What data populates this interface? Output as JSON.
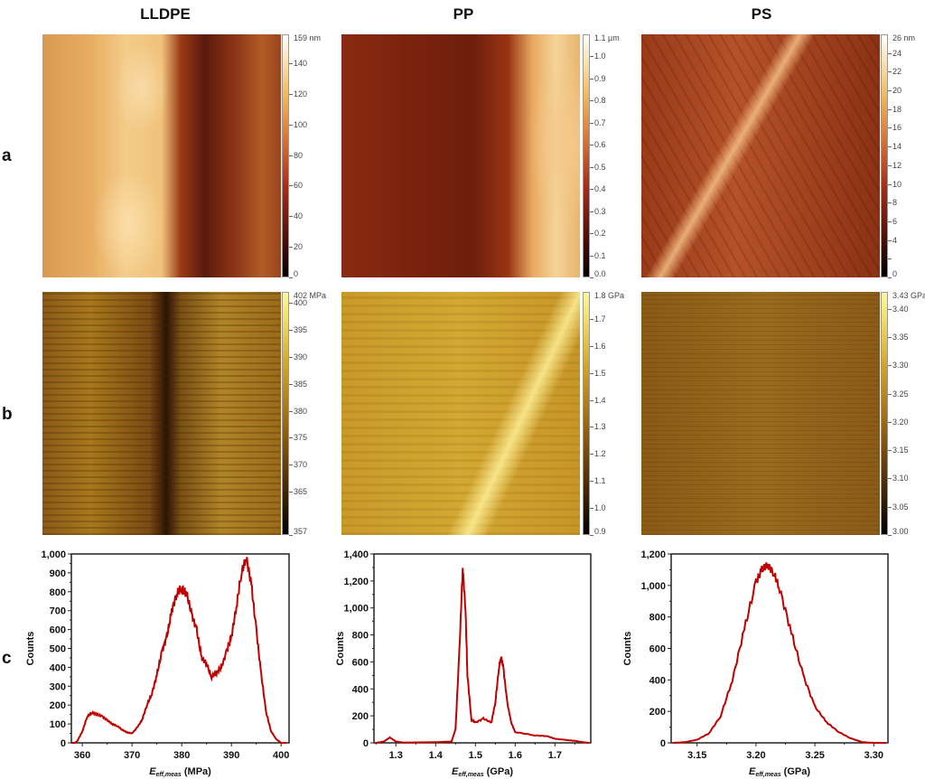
{
  "column_titles": [
    "LLDPE",
    "PP",
    "PS"
  ],
  "row_labels": [
    "a",
    "b",
    "c"
  ],
  "colorbars": [
    {
      "row": "a",
      "col": 0,
      "min": 0,
      "max": 159,
      "top_label": "159 nm",
      "ticks": [
        [
          0,
          "0"
        ],
        [
          20,
          "20"
        ],
        [
          40,
          "40"
        ],
        [
          60,
          "60"
        ],
        [
          80,
          "80"
        ],
        [
          100,
          "100"
        ],
        [
          120,
          "120"
        ],
        [
          140,
          "140"
        ]
      ]
    },
    {
      "row": "a",
      "col": 1,
      "min": 0,
      "max": 1.1,
      "top_label": "1.1 µm",
      "ticks": [
        [
          0,
          "0.0"
        ],
        [
          0.1,
          "0.1"
        ],
        [
          0.2,
          "0.2"
        ],
        [
          0.3,
          "0.3"
        ],
        [
          0.4,
          "0.4"
        ],
        [
          0.5,
          "0.5"
        ],
        [
          0.6,
          "0.6"
        ],
        [
          0.7,
          "0.7"
        ],
        [
          0.8,
          "0.8"
        ],
        [
          0.9,
          "0.9"
        ],
        [
          1.0,
          "1.0"
        ]
      ]
    },
    {
      "row": "a",
      "col": 2,
      "min": 0,
      "max": 26,
      "top_label": "26 nm",
      "ticks": [
        [
          0,
          "0"
        ],
        [
          2,
          ""
        ],
        [
          4,
          "4"
        ],
        [
          6,
          "6"
        ],
        [
          8,
          "8"
        ],
        [
          10,
          "10"
        ],
        [
          12,
          "12"
        ],
        [
          14,
          "14"
        ],
        [
          16,
          "16"
        ],
        [
          18,
          "18"
        ],
        [
          20,
          "20"
        ],
        [
          22,
          "22"
        ],
        [
          24,
          "24"
        ]
      ]
    },
    {
      "row": "b",
      "col": 0,
      "min": 357,
      "max": 402,
      "top_label": "402 MPa",
      "ticks": [
        [
          357,
          "357"
        ],
        [
          365,
          "365"
        ],
        [
          370,
          "370"
        ],
        [
          375,
          "375"
        ],
        [
          380,
          "380"
        ],
        [
          385,
          "385"
        ],
        [
          390,
          "390"
        ],
        [
          395,
          "395"
        ],
        [
          400,
          "400"
        ]
      ]
    },
    {
      "row": "b",
      "col": 1,
      "min": 0.9,
      "max": 1.8,
      "top_label": "1.8 GPa",
      "ticks": [
        [
          0.9,
          "0.9"
        ],
        [
          1.0,
          "1.0"
        ],
        [
          1.1,
          "1.1"
        ],
        [
          1.2,
          "1.2"
        ],
        [
          1.3,
          "1.3"
        ],
        [
          1.4,
          "1.4"
        ],
        [
          1.5,
          "1.5"
        ],
        [
          1.6,
          "1.6"
        ],
        [
          1.7,
          "1.7"
        ]
      ]
    },
    {
      "row": "b",
      "col": 2,
      "min": 3.0,
      "max": 3.43,
      "top_label": "3.43 GPa",
      "ticks": [
        [
          3.0,
          "3.00"
        ],
        [
          3.05,
          "3.05"
        ],
        [
          3.1,
          "3.10"
        ],
        [
          3.15,
          "3.15"
        ],
        [
          3.2,
          "3.20"
        ],
        [
          3.25,
          "3.25"
        ],
        [
          3.3,
          "3.30"
        ],
        [
          3.35,
          "3.35"
        ],
        [
          3.4,
          "3.40"
        ]
      ]
    }
  ],
  "colors": {
    "line": "#c00000",
    "height_colormap": "afm-copper",
    "modulus_colormap": "afm-gold"
  },
  "chart_data": [
    {
      "type": "line",
      "panel": "LLDPE",
      "ylabel": "Counts",
      "xlabel_symbol": "E",
      "xlabel_sub": "eff,meas",
      "xlabel_unit": "(MPa)",
      "xlim": [
        357.8,
        401.6
      ],
      "ylim": [
        0,
        1000
      ],
      "xticks": [
        360,
        370,
        380,
        390,
        400
      ],
      "xtick_labels": [
        "360",
        "370",
        "380",
        "390",
        "400"
      ],
      "yticks": [
        0,
        100,
        200,
        300,
        400,
        500,
        600,
        700,
        800,
        900,
        1000
      ],
      "ytick_labels": [
        "0",
        "100",
        "200",
        "300",
        "400",
        "500",
        "600",
        "700",
        "800",
        "900",
        "1,000"
      ],
      "x": [
        357.8,
        358.5,
        359,
        360,
        361,
        362,
        363,
        364,
        365,
        366,
        367,
        368,
        369,
        370,
        371,
        372,
        373,
        374,
        375,
        376,
        377,
        378,
        379,
        380,
        381,
        382,
        383,
        384,
        385,
        386,
        387,
        388,
        389,
        390,
        391,
        392,
        393,
        394,
        395,
        396,
        397,
        398,
        399,
        400,
        401
      ],
      "y": [
        0,
        0,
        10,
        60,
        140,
        160,
        150,
        140,
        120,
        100,
        90,
        70,
        55,
        50,
        80,
        120,
        200,
        260,
        360,
        480,
        560,
        700,
        790,
        820,
        790,
        680,
        600,
        450,
        420,
        350,
        370,
        400,
        480,
        560,
        720,
        900,
        980,
        840,
        600,
        360,
        160,
        60,
        20,
        0,
        0
      ]
    },
    {
      "type": "line",
      "panel": "PP",
      "ylabel": "Counts",
      "xlabel_symbol": "E",
      "xlabel_sub": "eff,meas",
      "xlabel_unit": "(GPa)",
      "xlim": [
        1.245,
        1.79
      ],
      "ylim": [
        0,
        1400
      ],
      "xticks": [
        1.3,
        1.4,
        1.5,
        1.6,
        1.7
      ],
      "xtick_labels": [
        "1.3",
        "1.4",
        "1.5",
        "1.6",
        "1.7"
      ],
      "yticks": [
        0,
        200,
        400,
        600,
        800,
        1000,
        1200,
        1400
      ],
      "ytick_labels": [
        "0",
        "200",
        "400",
        "600",
        "800",
        "1,000",
        "1,200",
        "1,400"
      ],
      "x": [
        1.25,
        1.27,
        1.285,
        1.3,
        1.32,
        1.4,
        1.44,
        1.45,
        1.46,
        1.468,
        1.475,
        1.48,
        1.49,
        1.5,
        1.52,
        1.54,
        1.55,
        1.56,
        1.565,
        1.57,
        1.58,
        1.59,
        1.6,
        1.65,
        1.68,
        1.7,
        1.75,
        1.77,
        1.785
      ],
      "y": [
        0,
        10,
        40,
        10,
        2,
        5,
        10,
        100,
        700,
        1290,
        1000,
        500,
        170,
        150,
        180,
        150,
        300,
        580,
        630,
        560,
        300,
        150,
        80,
        55,
        50,
        30,
        15,
        5,
        0
      ]
    },
    {
      "type": "line",
      "panel": "PS",
      "ylabel": "Counts",
      "xlabel_symbol": "E",
      "xlabel_sub": "eff,meas",
      "xlabel_unit": "(GPa)",
      "xlim": [
        3.128,
        3.312
      ],
      "ylim": [
        0,
        1200
      ],
      "xticks": [
        3.15,
        3.2,
        3.25,
        3.3
      ],
      "xtick_labels": [
        "3.15",
        "3.20",
        "3.25",
        "3.30"
      ],
      "yticks": [
        0,
        200,
        400,
        600,
        800,
        1000,
        1200
      ],
      "ytick_labels": [
        "0",
        "200",
        "400",
        "600",
        "800",
        "1,000",
        "1,200"
      ],
      "x": [
        3.13,
        3.14,
        3.15,
        3.16,
        3.17,
        3.18,
        3.19,
        3.2,
        3.205,
        3.21,
        3.215,
        3.22,
        3.23,
        3.24,
        3.25,
        3.26,
        3.27,
        3.28,
        3.29,
        3.3,
        3.31
      ],
      "y": [
        0,
        5,
        20,
        60,
        170,
        400,
        720,
        1020,
        1100,
        1130,
        1080,
        980,
        700,
        430,
        230,
        130,
        70,
        30,
        5,
        0,
        0
      ]
    }
  ]
}
